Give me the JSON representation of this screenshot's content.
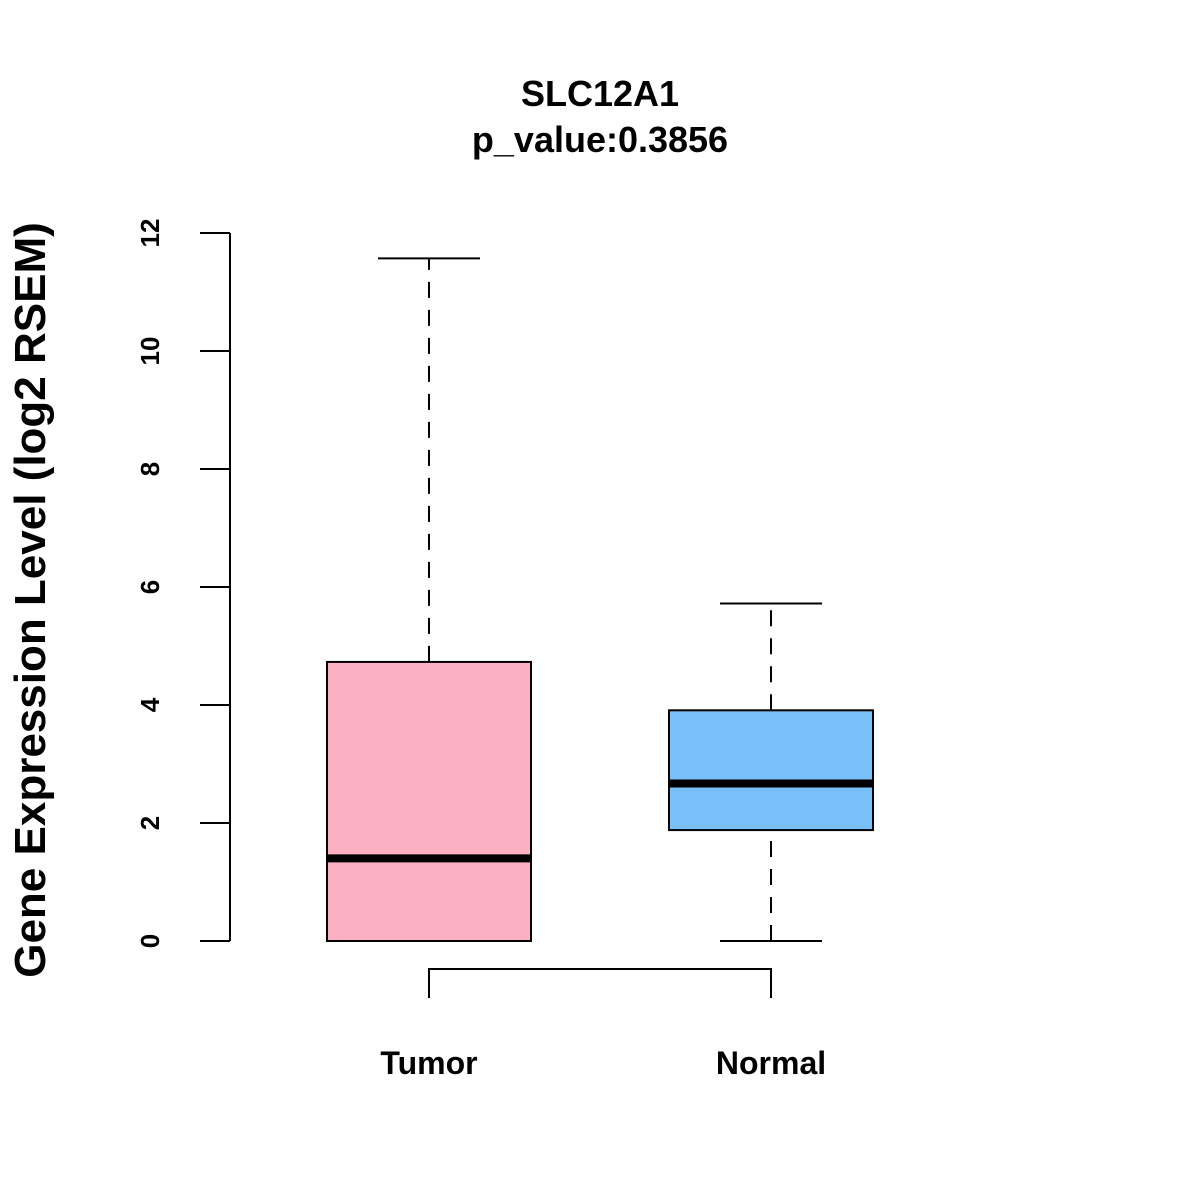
{
  "chart_data": {
    "type": "box",
    "title": "SLC12A1",
    "subtitle": "p_value:0.3856",
    "xlabel": "",
    "ylabel": "Gene Expression Level (log2 RSEM)",
    "ylim": [
      0,
      12
    ],
    "yticks": [
      "0",
      "2",
      "4",
      "6",
      "8",
      "10",
      "12"
    ],
    "categories": [
      "Tumor",
      "Normal"
    ],
    "series": [
      {
        "name": "Tumor",
        "min": 0.0,
        "q1": 0.0,
        "median": 1.4,
        "q3": 4.73,
        "max": 11.57,
        "color": "#FBB0C3"
      },
      {
        "name": "Normal",
        "min": 0.0,
        "q1": 1.88,
        "median": 2.67,
        "q3": 3.91,
        "max": 5.72,
        "color": "#78C0F8"
      }
    ],
    "comparison_bracket": [
      "Tumor",
      "Normal"
    ],
    "grid": false
  }
}
